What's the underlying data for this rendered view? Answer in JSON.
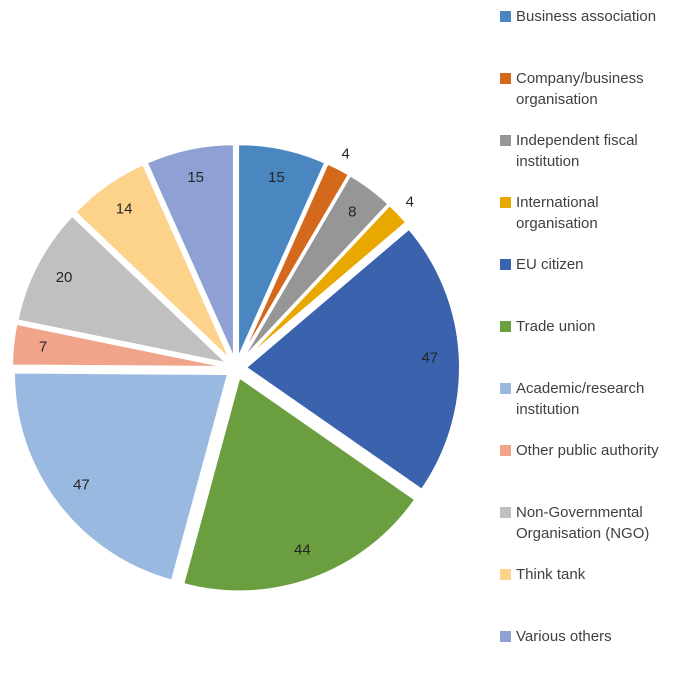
{
  "chart_data": {
    "type": "pie",
    "categories": [
      "Business association",
      "Company/business organisation",
      "Independent fiscal institution",
      "International organisation",
      "EU citizen",
      "Trade union",
      "Academic/research institution",
      "Other public authority",
      "Non-Governmental Organisation (NGO)",
      "Think tank",
      "Various others"
    ],
    "values": [
      15,
      4,
      8,
      4,
      47,
      44,
      47,
      7,
      20,
      14,
      15
    ],
    "colors": [
      "#4a86c0",
      "#d4691e",
      "#969696",
      "#e8a800",
      "#3a62ad",
      "#6b9e3f",
      "#9ab9e0",
      "#f0a58a",
      "#c0c0c0",
      "#fdd28a",
      "#8fa0d4"
    ],
    "legend": "right"
  }
}
